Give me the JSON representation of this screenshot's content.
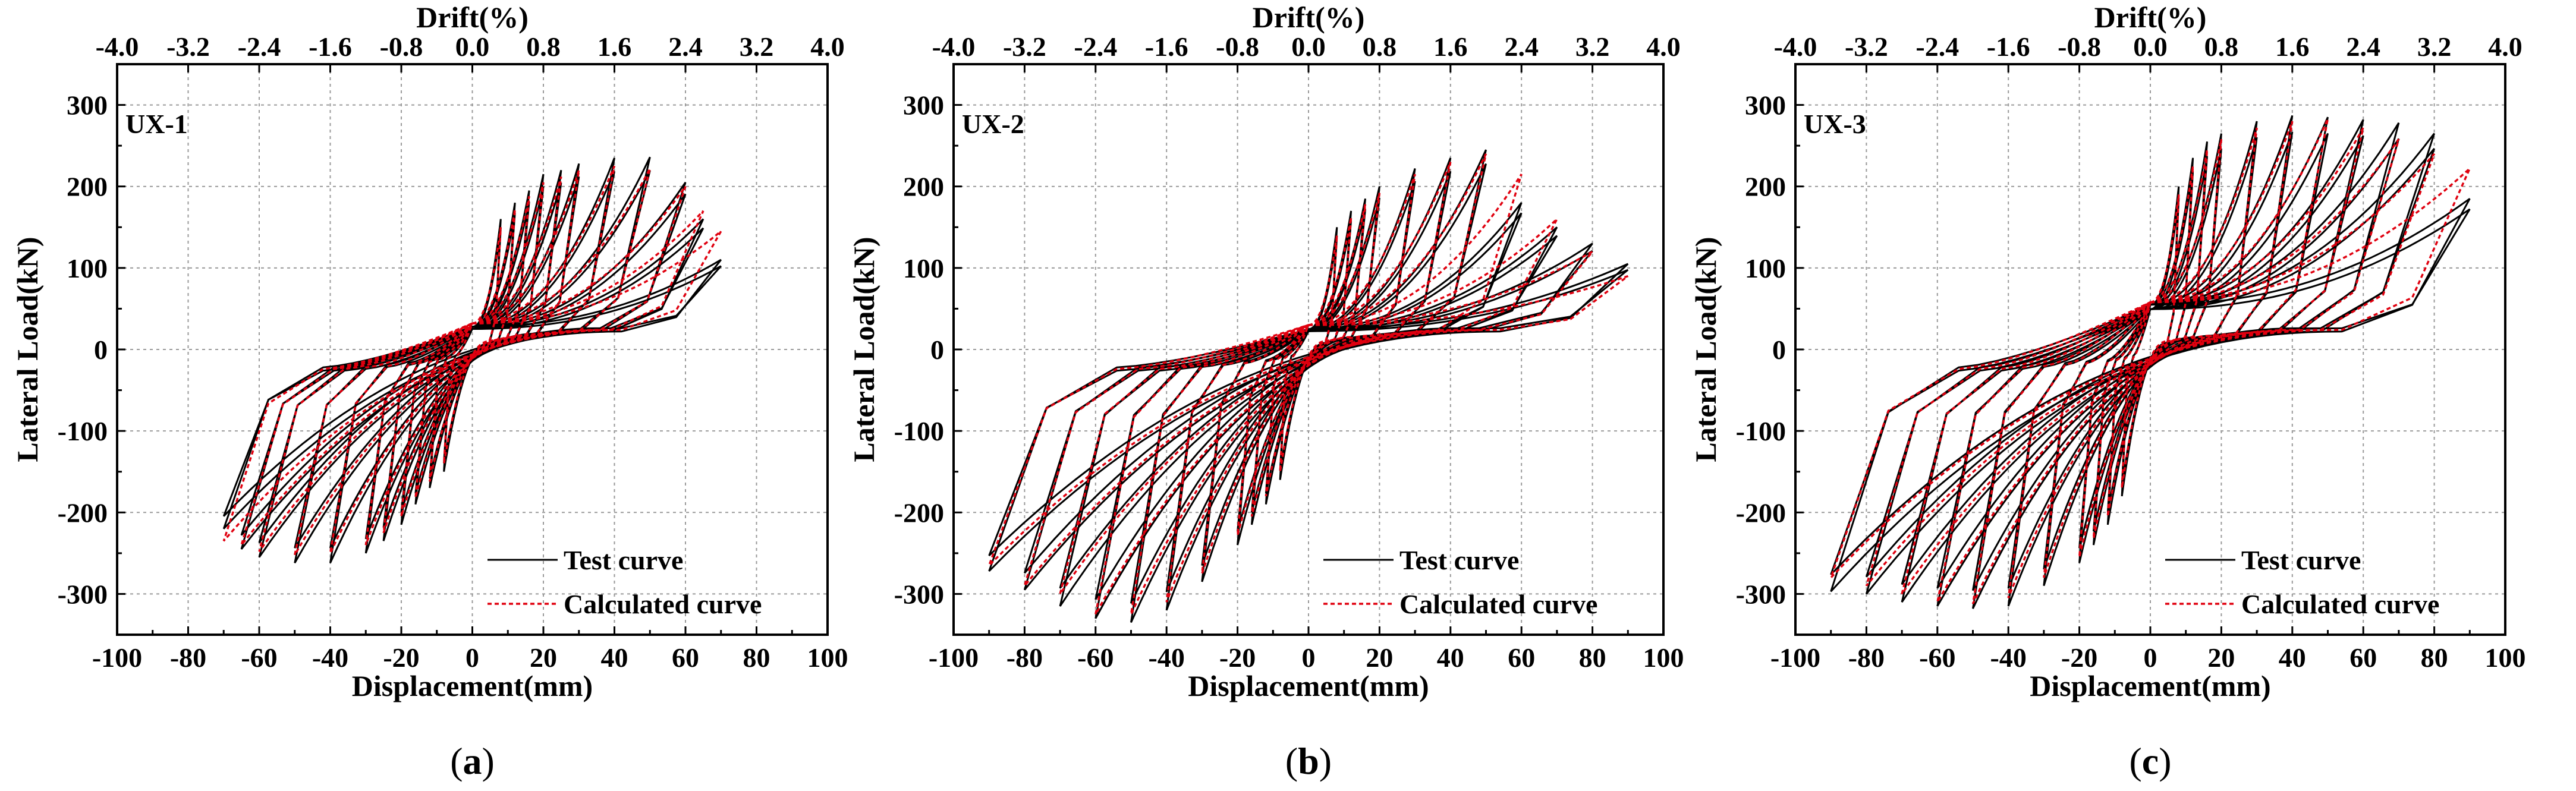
{
  "figure": {
    "captions": [
      {
        "open": "(",
        "letter": "a",
        "close": ")"
      },
      {
        "open": "(",
        "letter": "b",
        "close": ")"
      },
      {
        "open": "(",
        "letter": "c",
        "close": ")"
      }
    ]
  },
  "chart_data": [
    {
      "type": "line",
      "panel_label": "UX-1",
      "xlabel": "Displacement(mm)",
      "ylabel": "Lateral Load(kN)",
      "top_xlabel": "Drift(%)",
      "xlim": [
        -100,
        100
      ],
      "ylim": [
        -350,
        350
      ],
      "top_xlim": [
        -4.0,
        4.0
      ],
      "xticks": [
        -100,
        -80,
        -60,
        -40,
        -20,
        0,
        20,
        40,
        60,
        80,
        100
      ],
      "yticks": [
        -300,
        -200,
        -100,
        0,
        100,
        200,
        300
      ],
      "top_xticks": [
        "-4.0",
        "-3.2",
        "-2.4",
        "-1.6",
        "-0.8",
        "0.0",
        "0.8",
        "1.6",
        "2.4",
        "3.2",
        "4.0"
      ],
      "grid": true,
      "legend_position": "bottom-right",
      "series": [
        {
          "name": "Test curve",
          "style": "solid",
          "color": "#000000",
          "peaks": [
            [
              8,
              160,
              -8,
              -150
            ],
            [
              12,
              180,
              -12,
              -170
            ],
            [
              16,
              195,
              -16,
              -190
            ],
            [
              20,
              215,
              -20,
              -215
            ],
            [
              25,
              220,
              -25,
              -235
            ],
            [
              30,
              228,
              -30,
              -250
            ],
            [
              40,
              235,
              -40,
              -262
            ],
            [
              50,
              236,
              -50,
              -262
            ],
            [
              60,
              205,
              -60,
              -255
            ],
            [
              65,
              160,
              -65,
              -245
            ],
            [
              70,
              110,
              -70,
              -220
            ]
          ],
          "pinch": {
            "p0": 28,
            "r0": 8,
            "n0": 8
          }
        },
        {
          "name": "Calculated curve",
          "style": "dashed",
          "color": "#e0000f",
          "peaks": [
            [
              8,
              150,
              -8,
              -140
            ],
            [
              12,
              172,
              -12,
              -162
            ],
            [
              16,
              188,
              -16,
              -182
            ],
            [
              20,
              205,
              -20,
              -205
            ],
            [
              25,
              212,
              -25,
              -225
            ],
            [
              30,
              220,
              -30,
              -240
            ],
            [
              40,
              225,
              -40,
              -250
            ],
            [
              50,
              222,
              -50,
              -252
            ],
            [
              60,
              200,
              -60,
              -248
            ],
            [
              65,
              170,
              -65,
              -240
            ],
            [
              70,
              145,
              -70,
              -235
            ]
          ],
          "pinch": {
            "p0": 32,
            "r0": 10,
            "n0": 10
          }
        }
      ]
    },
    {
      "type": "line",
      "panel_label": "UX-2",
      "xlabel": "Displacement(mm)",
      "ylabel": "Lateral Load(kN)",
      "top_xlabel": "Drift(%)",
      "xlim": [
        -100,
        100
      ],
      "ylim": [
        -350,
        350
      ],
      "top_xlim": [
        -4.0,
        4.0
      ],
      "xticks": [
        -100,
        -80,
        -60,
        -40,
        -20,
        0,
        20,
        40,
        60,
        80,
        100
      ],
      "yticks": [
        -300,
        -200,
        -100,
        0,
        100,
        200,
        300
      ],
      "top_xticks": [
        "-4.0",
        "-3.2",
        "-2.4",
        "-1.6",
        "-0.8",
        "0.0",
        "0.8",
        "1.6",
        "2.4",
        "3.2",
        "4.0"
      ],
      "grid": true,
      "legend_position": "bottom-right",
      "series": [
        {
          "name": "Test curve",
          "style": "solid",
          "color": "#000000",
          "peaks": [
            [
              8,
              150,
              -8,
              -160
            ],
            [
              12,
              170,
              -12,
              -190
            ],
            [
              16,
              185,
              -16,
              -215
            ],
            [
              20,
              200,
              -20,
              -240
            ],
            [
              30,
              222,
              -30,
              -285
            ],
            [
              40,
              235,
              -40,
              -320
            ],
            [
              50,
              245,
              -50,
              -335
            ],
            [
              60,
              180,
              -60,
              -330
            ],
            [
              70,
              150,
              -70,
              -315
            ],
            [
              80,
              130,
              -80,
              -295
            ],
            [
              90,
              105,
              -90,
              -272
            ]
          ],
          "pinch": {
            "p0": 25,
            "r0": 8,
            "n0": 8
          }
        },
        {
          "name": "Calculated curve",
          "style": "dashed",
          "color": "#e0000f",
          "peaks": [
            [
              8,
              140,
              -8,
              -150
            ],
            [
              12,
              162,
              -12,
              -180
            ],
            [
              16,
              178,
              -16,
              -205
            ],
            [
              20,
              192,
              -20,
              -228
            ],
            [
              30,
              215,
              -30,
              -275
            ],
            [
              40,
              230,
              -40,
              -310
            ],
            [
              50,
              240,
              -50,
              -325
            ],
            [
              60,
              215,
              -60,
              -325
            ],
            [
              70,
              160,
              -70,
              -300
            ],
            [
              80,
              120,
              -80,
              -290
            ],
            [
              90,
              90,
              -90,
              -265
            ]
          ],
          "pinch": {
            "p0": 30,
            "r0": 10,
            "n0": 10
          }
        }
      ]
    },
    {
      "type": "line",
      "panel_label": "UX-3",
      "xlabel": "Displacement(mm)",
      "ylabel": "Lateral Load(kN)",
      "top_xlabel": "Drift(%)",
      "xlim": [
        -100,
        100
      ],
      "ylim": [
        -350,
        350
      ],
      "top_xlim": [
        -4.0,
        4.0
      ],
      "xticks": [
        -100,
        -80,
        -60,
        -40,
        -20,
        0,
        20,
        40,
        60,
        80,
        100
      ],
      "yticks": [
        -300,
        -200,
        -100,
        0,
        100,
        200,
        300
      ],
      "top_xticks": [
        "-4.0",
        "-3.2",
        "-2.4",
        "-1.6",
        "-0.8",
        "0.0",
        "0.8",
        "1.6",
        "2.4",
        "3.2",
        "4.0"
      ],
      "grid": true,
      "legend_position": "bottom-right",
      "series": [
        {
          "name": "Test curve",
          "style": "solid",
          "color": "#000000",
          "peaks": [
            [
              8,
              200,
              -8,
              -180
            ],
            [
              12,
              235,
              -12,
              -215
            ],
            [
              16,
              255,
              -16,
              -240
            ],
            [
              20,
              265,
              -20,
              -262
            ],
            [
              30,
              280,
              -30,
              -290
            ],
            [
              40,
              287,
              -40,
              -315
            ],
            [
              50,
              285,
              -50,
              -318
            ],
            [
              60,
              282,
              -60,
              -315
            ],
            [
              70,
              278,
              -70,
              -310
            ],
            [
              80,
              265,
              -80,
              -300
            ],
            [
              90,
              185,
              -90,
              -297
            ]
          ],
          "pinch": {
            "p0": 55,
            "r0": 8,
            "n0": 8
          }
        },
        {
          "name": "Calculated curve",
          "style": "dashed",
          "color": "#e0000f",
          "peaks": [
            [
              8,
              190,
              -8,
              -170
            ],
            [
              12,
              225,
              -12,
              -205
            ],
            [
              16,
              245,
              -16,
              -232
            ],
            [
              20,
              258,
              -20,
              -255
            ],
            [
              30,
              272,
              -30,
              -280
            ],
            [
              40,
              280,
              -40,
              -305
            ],
            [
              50,
              283,
              -50,
              -312
            ],
            [
              60,
              272,
              -60,
              -310
            ],
            [
              70,
              258,
              -70,
              -300
            ],
            [
              80,
              240,
              -80,
              -290
            ],
            [
              90,
              222,
              -90,
              -280
            ]
          ],
          "pinch": {
            "p0": 58,
            "r0": 10,
            "n0": 10
          }
        }
      ]
    }
  ]
}
